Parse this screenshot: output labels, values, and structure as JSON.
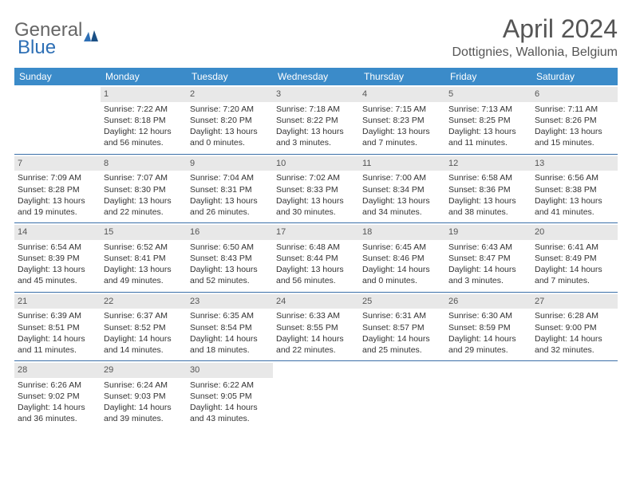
{
  "logo": {
    "text1": "General",
    "text2": "Blue"
  },
  "title": "April 2024",
  "location": "Dottignies, Wallonia, Belgium",
  "weekdays": [
    "Sunday",
    "Monday",
    "Tuesday",
    "Wednesday",
    "Thursday",
    "Friday",
    "Saturday"
  ],
  "colors": {
    "header_bg": "#3b8bc9",
    "header_text": "#ffffff",
    "daynum_bg": "#e8e8e8",
    "rule": "#3b6fa8",
    "logo_blue": "#2d6fb5",
    "body_text": "#333333",
    "title_text": "#555555"
  },
  "weeks": [
    [
      null,
      {
        "n": "1",
        "sr": "Sunrise: 7:22 AM",
        "ss": "Sunset: 8:18 PM",
        "d1": "Daylight: 12 hours",
        "d2": "and 56 minutes."
      },
      {
        "n": "2",
        "sr": "Sunrise: 7:20 AM",
        "ss": "Sunset: 8:20 PM",
        "d1": "Daylight: 13 hours",
        "d2": "and 0 minutes."
      },
      {
        "n": "3",
        "sr": "Sunrise: 7:18 AM",
        "ss": "Sunset: 8:22 PM",
        "d1": "Daylight: 13 hours",
        "d2": "and 3 minutes."
      },
      {
        "n": "4",
        "sr": "Sunrise: 7:15 AM",
        "ss": "Sunset: 8:23 PM",
        "d1": "Daylight: 13 hours",
        "d2": "and 7 minutes."
      },
      {
        "n": "5",
        "sr": "Sunrise: 7:13 AM",
        "ss": "Sunset: 8:25 PM",
        "d1": "Daylight: 13 hours",
        "d2": "and 11 minutes."
      },
      {
        "n": "6",
        "sr": "Sunrise: 7:11 AM",
        "ss": "Sunset: 8:26 PM",
        "d1": "Daylight: 13 hours",
        "d2": "and 15 minutes."
      }
    ],
    [
      {
        "n": "7",
        "sr": "Sunrise: 7:09 AM",
        "ss": "Sunset: 8:28 PM",
        "d1": "Daylight: 13 hours",
        "d2": "and 19 minutes."
      },
      {
        "n": "8",
        "sr": "Sunrise: 7:07 AM",
        "ss": "Sunset: 8:30 PM",
        "d1": "Daylight: 13 hours",
        "d2": "and 22 minutes."
      },
      {
        "n": "9",
        "sr": "Sunrise: 7:04 AM",
        "ss": "Sunset: 8:31 PM",
        "d1": "Daylight: 13 hours",
        "d2": "and 26 minutes."
      },
      {
        "n": "10",
        "sr": "Sunrise: 7:02 AM",
        "ss": "Sunset: 8:33 PM",
        "d1": "Daylight: 13 hours",
        "d2": "and 30 minutes."
      },
      {
        "n": "11",
        "sr": "Sunrise: 7:00 AM",
        "ss": "Sunset: 8:34 PM",
        "d1": "Daylight: 13 hours",
        "d2": "and 34 minutes."
      },
      {
        "n": "12",
        "sr": "Sunrise: 6:58 AM",
        "ss": "Sunset: 8:36 PM",
        "d1": "Daylight: 13 hours",
        "d2": "and 38 minutes."
      },
      {
        "n": "13",
        "sr": "Sunrise: 6:56 AM",
        "ss": "Sunset: 8:38 PM",
        "d1": "Daylight: 13 hours",
        "d2": "and 41 minutes."
      }
    ],
    [
      {
        "n": "14",
        "sr": "Sunrise: 6:54 AM",
        "ss": "Sunset: 8:39 PM",
        "d1": "Daylight: 13 hours",
        "d2": "and 45 minutes."
      },
      {
        "n": "15",
        "sr": "Sunrise: 6:52 AM",
        "ss": "Sunset: 8:41 PM",
        "d1": "Daylight: 13 hours",
        "d2": "and 49 minutes."
      },
      {
        "n": "16",
        "sr": "Sunrise: 6:50 AM",
        "ss": "Sunset: 8:43 PM",
        "d1": "Daylight: 13 hours",
        "d2": "and 52 minutes."
      },
      {
        "n": "17",
        "sr": "Sunrise: 6:48 AM",
        "ss": "Sunset: 8:44 PM",
        "d1": "Daylight: 13 hours",
        "d2": "and 56 minutes."
      },
      {
        "n": "18",
        "sr": "Sunrise: 6:45 AM",
        "ss": "Sunset: 8:46 PM",
        "d1": "Daylight: 14 hours",
        "d2": "and 0 minutes."
      },
      {
        "n": "19",
        "sr": "Sunrise: 6:43 AM",
        "ss": "Sunset: 8:47 PM",
        "d1": "Daylight: 14 hours",
        "d2": "and 3 minutes."
      },
      {
        "n": "20",
        "sr": "Sunrise: 6:41 AM",
        "ss": "Sunset: 8:49 PM",
        "d1": "Daylight: 14 hours",
        "d2": "and 7 minutes."
      }
    ],
    [
      {
        "n": "21",
        "sr": "Sunrise: 6:39 AM",
        "ss": "Sunset: 8:51 PM",
        "d1": "Daylight: 14 hours",
        "d2": "and 11 minutes."
      },
      {
        "n": "22",
        "sr": "Sunrise: 6:37 AM",
        "ss": "Sunset: 8:52 PM",
        "d1": "Daylight: 14 hours",
        "d2": "and 14 minutes."
      },
      {
        "n": "23",
        "sr": "Sunrise: 6:35 AM",
        "ss": "Sunset: 8:54 PM",
        "d1": "Daylight: 14 hours",
        "d2": "and 18 minutes."
      },
      {
        "n": "24",
        "sr": "Sunrise: 6:33 AM",
        "ss": "Sunset: 8:55 PM",
        "d1": "Daylight: 14 hours",
        "d2": "and 22 minutes."
      },
      {
        "n": "25",
        "sr": "Sunrise: 6:31 AM",
        "ss": "Sunset: 8:57 PM",
        "d1": "Daylight: 14 hours",
        "d2": "and 25 minutes."
      },
      {
        "n": "26",
        "sr": "Sunrise: 6:30 AM",
        "ss": "Sunset: 8:59 PM",
        "d1": "Daylight: 14 hours",
        "d2": "and 29 minutes."
      },
      {
        "n": "27",
        "sr": "Sunrise: 6:28 AM",
        "ss": "Sunset: 9:00 PM",
        "d1": "Daylight: 14 hours",
        "d2": "and 32 minutes."
      }
    ],
    [
      {
        "n": "28",
        "sr": "Sunrise: 6:26 AM",
        "ss": "Sunset: 9:02 PM",
        "d1": "Daylight: 14 hours",
        "d2": "and 36 minutes."
      },
      {
        "n": "29",
        "sr": "Sunrise: 6:24 AM",
        "ss": "Sunset: 9:03 PM",
        "d1": "Daylight: 14 hours",
        "d2": "and 39 minutes."
      },
      {
        "n": "30",
        "sr": "Sunrise: 6:22 AM",
        "ss": "Sunset: 9:05 PM",
        "d1": "Daylight: 14 hours",
        "d2": "and 43 minutes."
      },
      null,
      null,
      null,
      null
    ]
  ]
}
